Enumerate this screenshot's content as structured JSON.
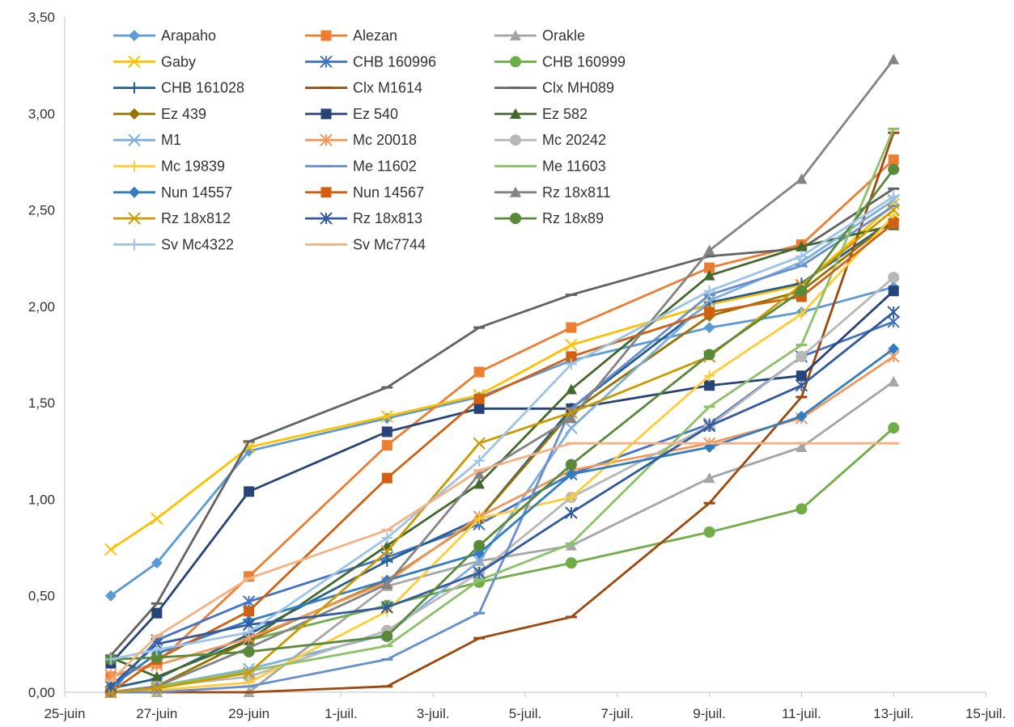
{
  "chart_data": {
    "type": "line",
    "title": "",
    "xlabel": "",
    "ylabel": "",
    "ylim": [
      0,
      3.5
    ],
    "xlim": [
      "2019-06-25",
      "2019-07-15"
    ],
    "grid": false,
    "legend_placement": "top-left, inside plot",
    "x_ticks": [
      "25-juin",
      "27-juin",
      "29-juin",
      "1-juil.",
      "3-juil.",
      "5-juil.",
      "7-juil.",
      "9-juil.",
      "11-juil.",
      "13-juil.",
      "15-juil."
    ],
    "y_ticks": [
      "0,00",
      "0,50",
      "1,00",
      "1,50",
      "2,00",
      "2,50",
      "3,00",
      "3,50"
    ],
    "x": [
      "2019-06-26",
      "2019-06-27",
      "2019-06-29",
      "2019-07-02",
      "2019-07-04",
      "2019-07-06",
      "2019-07-09",
      "2019-07-11",
      "2019-07-13"
    ],
    "series": [
      {
        "name": "Arapaho",
        "color": "#5B9BD5",
        "marker": "diamond",
        "values": [
          0.5,
          0.67,
          1.25,
          1.42,
          1.53,
          1.72,
          1.89,
          1.97,
          2.1
        ]
      },
      {
        "name": "Alezan",
        "color": "#ED7D31",
        "marker": "square",
        "values": [
          0.08,
          0.15,
          0.6,
          1.28,
          1.66,
          1.89,
          2.2,
          2.32,
          2.76
        ]
      },
      {
        "name": "Orakle",
        "color": "#A5A5A5",
        "marker": "triangle",
        "values": [
          0.0,
          0.0,
          0.0,
          0.55,
          0.68,
          0.76,
          1.11,
          1.27,
          1.61
        ]
      },
      {
        "name": "Gaby",
        "color": "#FFC000",
        "marker": "x",
        "values": [
          0.74,
          0.9,
          1.27,
          1.43,
          1.54,
          1.8,
          2.01,
          2.11,
          2.53
        ]
      },
      {
        "name": "CHB 160996",
        "color": "#4472C4",
        "marker": "star",
        "values": [
          0.0,
          0.27,
          0.47,
          0.7,
          0.87,
          1.13,
          1.39,
          1.74,
          1.92
        ]
      },
      {
        "name": "CHB 160999",
        "color": "#70AD47",
        "marker": "circle",
        "values": [
          0.0,
          0.03,
          0.27,
          0.45,
          0.57,
          0.67,
          0.83,
          0.95,
          1.37
        ]
      },
      {
        "name": "CHB 161028",
        "color": "#255E91",
        "marker": "plus",
        "values": [
          0.02,
          0.07,
          0.3,
          0.68,
          0.9,
          1.47,
          2.02,
          2.12,
          2.45
        ]
      },
      {
        "name": "Clx M1614",
        "color": "#9E480E",
        "marker": "dash",
        "values": [
          0.0,
          0.0,
          0.0,
          0.03,
          0.28,
          0.39,
          0.98,
          1.53,
          2.9
        ]
      },
      {
        "name": "Clx MH089",
        "color": "#636363",
        "marker": "dash",
        "values": [
          0.19,
          0.46,
          1.3,
          1.58,
          1.89,
          2.06,
          2.26,
          2.3,
          2.61
        ]
      },
      {
        "name": "Ez 439",
        "color": "#997300",
        "marker": "diamond",
        "values": [
          0.0,
          0.03,
          0.27,
          0.58,
          0.9,
          1.45,
          1.95,
          2.08,
          2.45
        ]
      },
      {
        "name": "Ez 540",
        "color": "#264478",
        "marker": "square",
        "values": [
          0.15,
          0.41,
          1.04,
          1.35,
          1.47,
          1.47,
          1.59,
          1.64,
          2.08
        ]
      },
      {
        "name": "Ez 582",
        "color": "#43682B",
        "marker": "triangle",
        "values": [
          0.18,
          0.08,
          0.27,
          0.76,
          1.08,
          1.57,
          2.16,
          2.31,
          2.42
        ]
      },
      {
        "name": "M1",
        "color": "#7CAFDD",
        "marker": "x",
        "values": [
          0.0,
          0.03,
          0.12,
          0.3,
          0.68,
          1.37,
          2.03,
          2.23,
          2.55
        ]
      },
      {
        "name": "Mc 20018",
        "color": "#F1975A",
        "marker": "star",
        "values": [
          0.09,
          0.14,
          0.28,
          0.57,
          0.91,
          1.15,
          1.29,
          1.42,
          1.74
        ]
      },
      {
        "name": "Mc 20242",
        "color": "#B7B7B7",
        "marker": "circle",
        "values": [
          0.0,
          0.03,
          0.08,
          0.32,
          0.62,
          1.01,
          1.38,
          1.74,
          2.15
        ]
      },
      {
        "name": "Mc 19839",
        "color": "#FFCD33",
        "marker": "plus",
        "values": [
          0.0,
          0.01,
          0.05,
          0.42,
          0.9,
          1.01,
          1.64,
          1.96,
          2.47
        ]
      },
      {
        "name": "Me 11602",
        "color": "#698ED0",
        "marker": "dash",
        "values": [
          0.0,
          0.0,
          0.03,
          0.17,
          0.41,
          1.47,
          2.06,
          2.21,
          2.52
        ]
      },
      {
        "name": "Me 11603",
        "color": "#8CC168",
        "marker": "dash",
        "values": [
          0.0,
          0.03,
          0.11,
          0.24,
          0.58,
          0.77,
          1.48,
          1.8,
          2.92
        ]
      },
      {
        "name": "Nun 14557",
        "color": "#327DC2",
        "marker": "diamond",
        "values": [
          0.03,
          0.2,
          0.37,
          0.58,
          0.72,
          1.13,
          1.27,
          1.43,
          1.78
        ]
      },
      {
        "name": "Nun 14567",
        "color": "#D26012",
        "marker": "square",
        "values": [
          0.0,
          0.17,
          0.42,
          1.11,
          1.52,
          1.74,
          1.97,
          2.05,
          2.43
        ]
      },
      {
        "name": "Rz 18x811",
        "color": "#848484",
        "marker": "triangle",
        "values": [
          0.0,
          0.03,
          0.23,
          0.56,
          1.13,
          1.42,
          2.29,
          2.66,
          3.28
        ]
      },
      {
        "name": "Rz 18x812",
        "color": "#CC9A00",
        "marker": "x",
        "values": [
          0.0,
          0.02,
          0.1,
          0.73,
          1.29,
          1.45,
          1.74,
          2.11,
          2.5
        ]
      },
      {
        "name": "Rz 18x813",
        "color": "#335AA1",
        "marker": "star",
        "values": [
          0.03,
          0.25,
          0.35,
          0.44,
          0.62,
          0.93,
          1.38,
          1.59,
          1.97
        ]
      },
      {
        "name": "Rz 18x89",
        "color": "#5A8A39",
        "marker": "circle",
        "values": [
          0.17,
          0.18,
          0.21,
          0.29,
          0.76,
          1.18,
          1.75,
          2.08,
          2.71
        ]
      },
      {
        "name": "Sv Mc4322",
        "color": "#9DC3E6",
        "marker": "plus",
        "values": [
          0.17,
          0.22,
          0.31,
          0.8,
          1.2,
          1.7,
          2.08,
          2.26,
          2.57
        ]
      },
      {
        "name": "Sv Mc7744",
        "color": "#F4B183",
        "marker": "dash",
        "values": [
          0.06,
          0.29,
          0.59,
          0.84,
          1.15,
          1.29,
          1.29,
          1.29,
          1.29
        ]
      }
    ]
  }
}
